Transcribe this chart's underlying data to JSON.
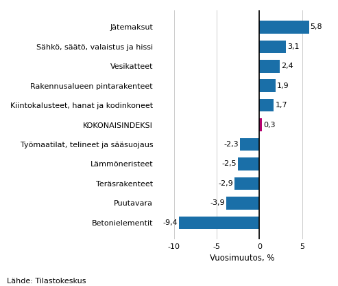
{
  "categories": [
    "Betonielementit",
    "Puutavara",
    "Teräsrakenteet",
    "Lämmöneristeet",
    "Työmaatilat, telineet ja sääsuojaus",
    "KOKONAISINDEKSI",
    "Kiintokalusteet, hanat ja kodinkoneet",
    "Rakennusalueen pintarakenteet",
    "Vesikatteet",
    "Sähkö, säätö, valaistus ja hissi",
    "Jätemaksut"
  ],
  "values": [
    -9.4,
    -3.9,
    -2.9,
    -2.5,
    -2.3,
    0.3,
    1.7,
    1.9,
    2.4,
    3.1,
    5.8
  ],
  "xlabel": "Vuosimuutos, %",
  "xlim": [
    -12,
    8
  ],
  "xticks": [
    -10,
    -5,
    0,
    5
  ],
  "source_text": "Lähde: Tilastokeskus",
  "bar_color_blue": "#1a6fa8",
  "bar_color_magenta": "#b5006e",
  "label_fontsize": 8,
  "tick_fontsize": 8,
  "xlabel_fontsize": 8.5
}
